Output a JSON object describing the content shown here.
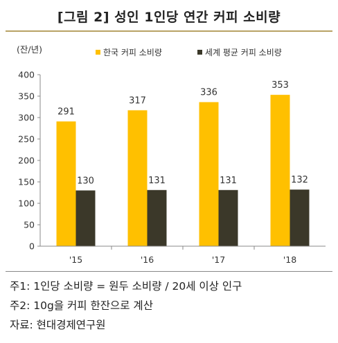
{
  "title": "[그림 2] 성인 1인당 연간 커피 소비량",
  "chart_data": {
    "type": "bar",
    "title": "[그림 2] 성인 1인당 연간 커피 소비량",
    "ylabel": "(잔/년)",
    "xlabel": "",
    "ylim": [
      0,
      400
    ],
    "yticks": [
      0,
      50,
      100,
      150,
      200,
      250,
      300,
      350,
      400
    ],
    "categories": [
      "'15",
      "'16",
      "'17",
      "'18"
    ],
    "series": [
      {
        "name": "한국 커피 소비량",
        "color": "#ffc000",
        "values": [
          291,
          317,
          336,
          353
        ]
      },
      {
        "name": "세계 평균 커피 소비량",
        "color": "#3b3829",
        "values": [
          130,
          131,
          131,
          132
        ]
      }
    ],
    "legend": "top",
    "grid": false
  },
  "notes": [
    "주1: 1인당 소비량 = 원두 소비량 / 20세 이상 인구",
    "주2: 10g을 커피 한잔으로 계산",
    "자료: 현대경제연구원"
  ]
}
